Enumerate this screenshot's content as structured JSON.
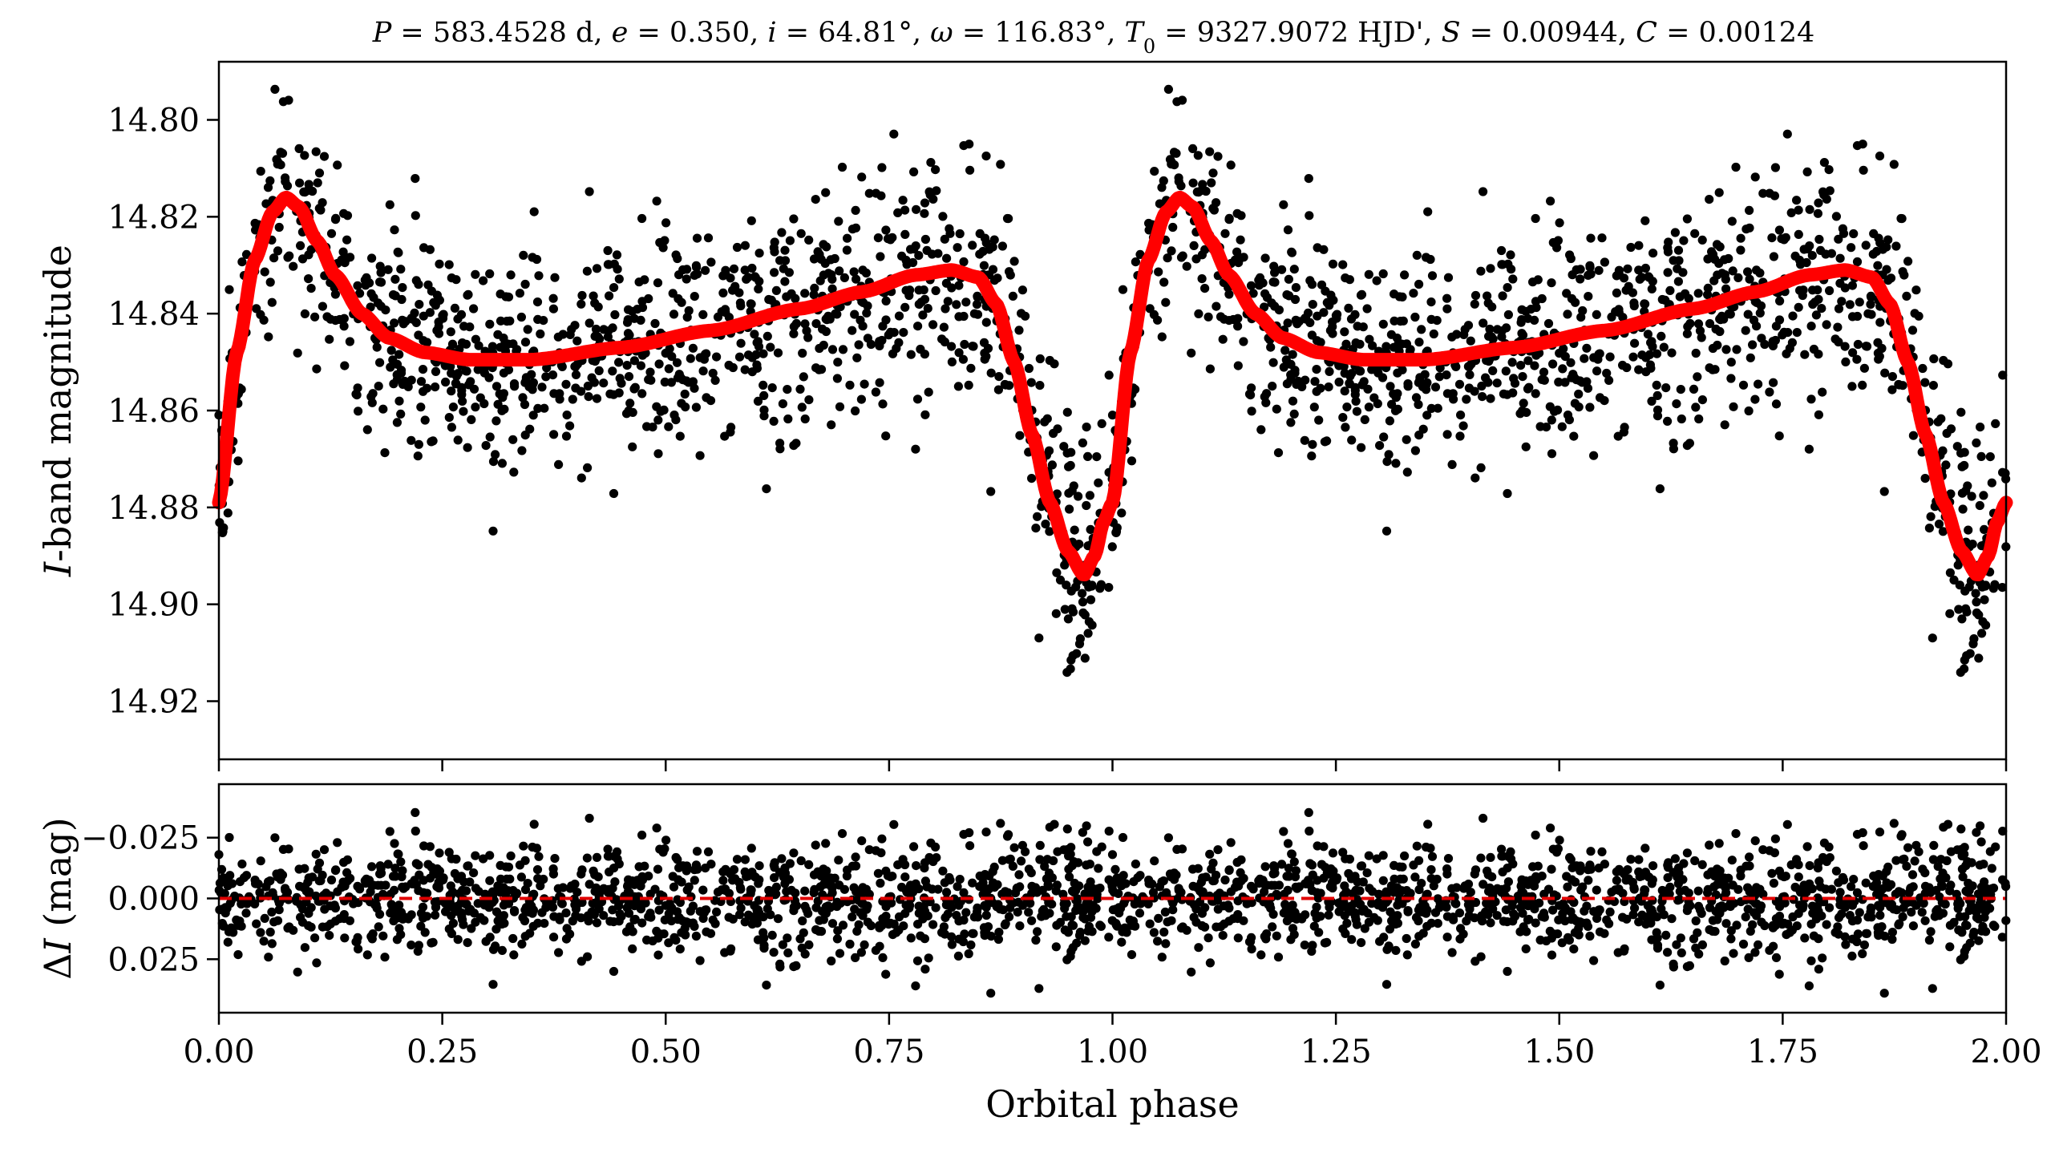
{
  "chart_data": [
    {
      "type": "scatter",
      "panel": "light-curve",
      "title": "P = 583.4528 d, e = 0.350, i = 64.81°, ω = 116.83°, T0 = 9327.9072 HJD', S = 0.00944, C = 0.00124",
      "title_parts": {
        "P_sym": "P",
        "P_val": " = 583.4528 d, ",
        "e_sym": "e",
        "e_val": " = 0.350, ",
        "i_sym": "i",
        "i_val": " = 64.81°, ",
        "w_sym": "ω",
        "w_val": " = 116.83°, ",
        "T_sym": "T",
        "T_sub": "0",
        "T_val": " = 9327.9072 HJD', ",
        "S_sym": "S",
        "S_val": " = 0.00944, ",
        "C_sym": "C",
        "C_val": " = 0.00124"
      },
      "xlabel": "",
      "ylabel": "I-band magnitude",
      "ylabel_parts": {
        "sym": "I",
        "rest": "-band magnitude"
      },
      "xlim": [
        0.0,
        2.0
      ],
      "ylim": [
        14.932,
        14.788
      ],
      "y_inverted": true,
      "yticks": [
        "14.80",
        "14.82",
        "14.84",
        "14.86",
        "14.88",
        "14.90",
        "14.92"
      ],
      "grid": false,
      "legend": "none",
      "series": [
        {
          "name": "observed photometry",
          "color": "#000000",
          "marker": "circle",
          "n_points_per_cycle": 1150,
          "scatter_sigma_mag": 0.0115,
          "repeats_with_period_in_phase": 1.0
        },
        {
          "name": "orbital model",
          "color": "#ff0000",
          "marker": "line",
          "period_in_phase": 1.0,
          "phase": [
            0.0,
            0.02,
            0.04,
            0.06,
            0.075,
            0.09,
            0.11,
            0.13,
            0.16,
            0.19,
            0.23,
            0.28,
            0.35,
            0.45,
            0.55,
            0.65,
            0.72,
            0.78,
            0.82,
            0.85,
            0.87,
            0.89,
            0.91,
            0.93,
            0.95,
            0.968,
            0.98,
            0.99,
            1.0
          ],
          "magnitude": [
            14.879,
            14.848,
            14.829,
            14.819,
            14.816,
            14.818,
            14.825,
            14.832,
            14.84,
            14.845,
            14.848,
            14.8495,
            14.8495,
            14.847,
            14.8435,
            14.839,
            14.8355,
            14.832,
            14.831,
            14.8325,
            14.838,
            14.85,
            14.865,
            14.879,
            14.889,
            14.894,
            14.89,
            14.883,
            14.879
          ]
        }
      ]
    },
    {
      "type": "scatter",
      "panel": "residuals",
      "xlabel": "Orbital phase",
      "ylabel": "ΔI (mag)",
      "ylabel_parts": {
        "delta": "Δ",
        "sym": "I",
        "rest": " (mag)"
      },
      "xlim": [
        0.0,
        2.0
      ],
      "ylim": [
        0.047,
        -0.047
      ],
      "y_inverted": true,
      "xticks": [
        "0.00",
        "0.25",
        "0.50",
        "0.75",
        "1.00",
        "1.25",
        "1.50",
        "1.75",
        "2.00"
      ],
      "yticks": [
        "−0.025",
        "0.000",
        "0.025"
      ],
      "grid": false,
      "reference_line": {
        "value": 0.0,
        "style": "dashed",
        "color": "#e00000"
      },
      "series": [
        {
          "name": "residuals",
          "color": "#000000",
          "marker": "circle",
          "scatter_sigma_mag": 0.0115
        }
      ]
    }
  ]
}
